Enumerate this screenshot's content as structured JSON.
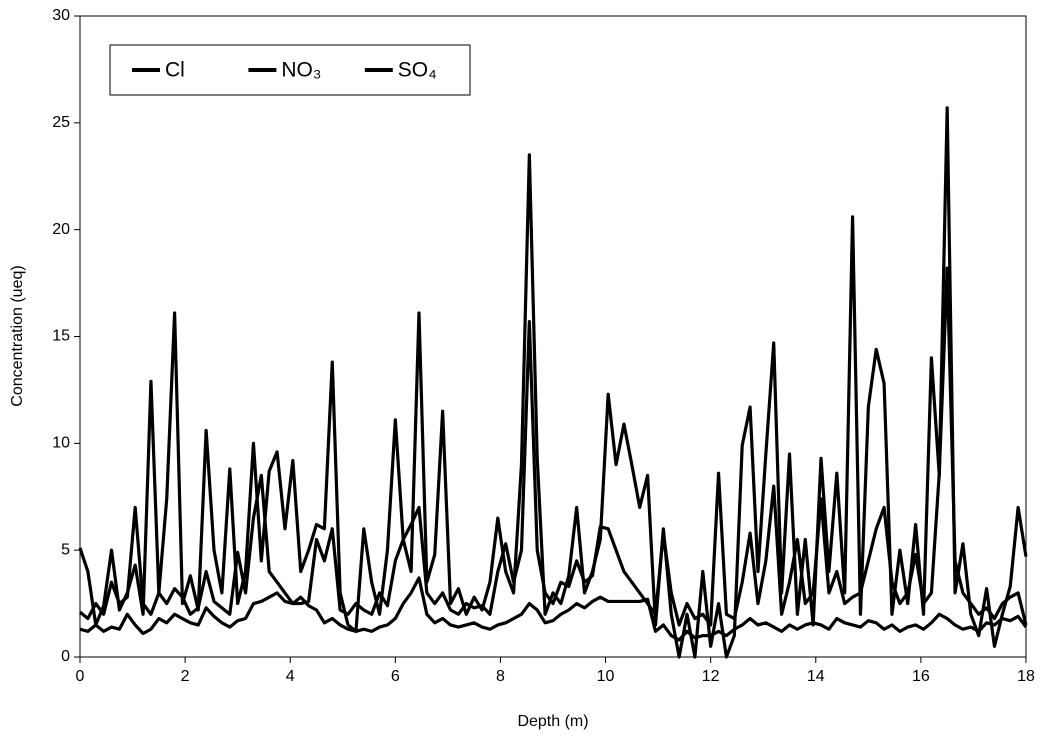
{
  "chart_data": {
    "type": "line",
    "x_label": "Depth (m)",
    "y_label": "Concentration (ueq)",
    "x": [
      0,
      0.15,
      0.3,
      0.45,
      0.6,
      0.75,
      0.9,
      1.05,
      1.2,
      1.35,
      1.5,
      1.65,
      1.8,
      1.95,
      2.1,
      2.25,
      2.4,
      2.55,
      2.7,
      2.85,
      3,
      3.15,
      3.3,
      3.45,
      3.6,
      3.75,
      3.9,
      4.05,
      4.2,
      4.35,
      4.5,
      4.65,
      4.8,
      4.95,
      5.1,
      5.25,
      5.4,
      5.55,
      5.7,
      5.85,
      6,
      6.15,
      6.3,
      6.45,
      6.6,
      6.75,
      6.9,
      7.05,
      7.2,
      7.35,
      7.5,
      7.65,
      7.8,
      7.95,
      8.1,
      8.25,
      8.4,
      8.55,
      8.7,
      8.85,
      9,
      9.15,
      9.3,
      9.45,
      9.6,
      9.75,
      9.9,
      10.05,
      10.2,
      10.35,
      10.5,
      10.65,
      10.8,
      10.95,
      11.1,
      11.25,
      11.4,
      11.55,
      11.7,
      11.85,
      12,
      12.15,
      12.3,
      12.45,
      12.6,
      12.75,
      12.9,
      13.05,
      13.2,
      13.35,
      13.5,
      13.65,
      13.8,
      13.95,
      14.1,
      14.25,
      14.4,
      14.55,
      14.7,
      14.85,
      15,
      15.15,
      15.3,
      15.45,
      15.6,
      15.75,
      15.9,
      16.05,
      16.2,
      16.35,
      16.5,
      16.65,
      16.8,
      16.95,
      17.1,
      17.25,
      17.4,
      17.55,
      17.7,
      17.85,
      18
    ],
    "series": [
      {
        "name": "Cl",
        "color": "#000000",
        "values": [
          5.1,
          4.0,
          1.5,
          2.4,
          5.0,
          2.2,
          3.0,
          4.3,
          2.0,
          12.9,
          3.0,
          7.4,
          16.1,
          2.5,
          3.8,
          2.2,
          10.6,
          5.0,
          3.0,
          8.8,
          2.5,
          4.0,
          10.0,
          4.5,
          8.7,
          9.6,
          6.0,
          9.2,
          4.0,
          5.0,
          6.2,
          6.0,
          13.8,
          3.0,
          1.5,
          1.2,
          6.0,
          3.5,
          2.0,
          5.0,
          11.1,
          5.5,
          4.0,
          16.1,
          3.5,
          4.8,
          11.5,
          2.5,
          3.2,
          2.0,
          2.8,
          2.2,
          3.5,
          6.5,
          4.0,
          3.0,
          9.0,
          23.5,
          9.3,
          2.0,
          3.0,
          2.5,
          3.8,
          7.0,
          3.0,
          4.0,
          5.5,
          12.3,
          9.0,
          10.9,
          9.0,
          7.0,
          8.5,
          1.5,
          6.0,
          2.0,
          0.0,
          2.0,
          0.0,
          4.0,
          0.5,
          2.5,
          0.0,
          1.0,
          9.9,
          11.7,
          4.0,
          9.5,
          14.7,
          3.0,
          9.5,
          2.0,
          5.5,
          1.5,
          9.3,
          4.0,
          8.6,
          3.0,
          20.6,
          2.0,
          11.7,
          14.4,
          12.8,
          2.0,
          5.0,
          2.5,
          6.2,
          2.0,
          14.0,
          8.5,
          25.7,
          3.0,
          5.3,
          2.0,
          1.0,
          3.2,
          0.5,
          2.0,
          3.3,
          7.0,
          4.7
        ]
      },
      {
        "name": "NO₃",
        "color": "#000000",
        "values": [
          1.3,
          1.2,
          1.5,
          1.2,
          1.4,
          1.3,
          2.0,
          1.5,
          1.1,
          1.3,
          1.8,
          1.6,
          2.0,
          1.8,
          1.6,
          1.5,
          2.3,
          1.9,
          1.6,
          1.4,
          1.7,
          1.8,
          2.5,
          2.6,
          2.8,
          3.0,
          2.6,
          2.5,
          2.8,
          2.4,
          2.2,
          1.6,
          1.8,
          1.5,
          1.3,
          1.2,
          1.3,
          1.2,
          1.4,
          1.5,
          1.8,
          2.5,
          3.0,
          3.7,
          2.0,
          1.6,
          1.8,
          1.5,
          1.4,
          1.5,
          1.6,
          1.4,
          1.3,
          1.5,
          1.6,
          1.8,
          2.0,
          2.5,
          2.2,
          1.6,
          1.7,
          2.0,
          2.2,
          2.5,
          2.3,
          2.6,
          2.8,
          2.6,
          2.6,
          2.6,
          2.6,
          2.6,
          2.7,
          1.2,
          1.5,
          1.0,
          0.8,
          1.2,
          0.9,
          1.0,
          1.0,
          1.2,
          1.0,
          1.3,
          1.5,
          1.8,
          1.5,
          1.6,
          1.4,
          1.2,
          1.5,
          1.3,
          1.5,
          1.6,
          1.5,
          1.3,
          1.8,
          1.6,
          1.5,
          1.4,
          1.7,
          1.6,
          1.3,
          1.5,
          1.2,
          1.4,
          1.5,
          1.3,
          1.6,
          2.0,
          1.8,
          1.5,
          1.3,
          1.4,
          1.2,
          1.6,
          1.5,
          1.8,
          1.7,
          1.9,
          1.4
        ]
      },
      {
        "name": "SO₄",
        "color": "#000000",
        "values": [
          2.1,
          1.8,
          2.5,
          2.0,
          3.5,
          2.5,
          2.8,
          7.0,
          2.5,
          2.0,
          3.0,
          2.5,
          3.2,
          2.8,
          2.0,
          2.3,
          4.0,
          2.6,
          2.3,
          2.0,
          4.9,
          3.0,
          6.5,
          8.5,
          4.0,
          3.5,
          3.0,
          2.5,
          2.5,
          2.6,
          5.5,
          4.5,
          6.0,
          2.2,
          2.0,
          2.5,
          2.2,
          2.0,
          3.0,
          2.4,
          4.5,
          5.5,
          6.2,
          7.0,
          3.0,
          2.5,
          3.0,
          2.2,
          2.0,
          2.5,
          2.3,
          2.4,
          2.0,
          4.0,
          5.3,
          3.5,
          5.0,
          15.7,
          5.0,
          3.0,
          2.5,
          3.5,
          3.3,
          4.5,
          3.5,
          3.8,
          6.1,
          6.0,
          5.0,
          4.0,
          3.5,
          3.0,
          2.5,
          2.0,
          5.8,
          3.0,
          1.5,
          2.5,
          1.8,
          2.0,
          1.5,
          8.6,
          2.0,
          1.8,
          3.5,
          5.8,
          2.5,
          4.5,
          8.0,
          2.0,
          3.5,
          5.5,
          2.5,
          3.0,
          7.4,
          3.0,
          4.0,
          2.5,
          2.8,
          3.0,
          4.5,
          6.0,
          7.0,
          3.5,
          2.5,
          3.0,
          4.8,
          2.5,
          3.0,
          8.6,
          18.2,
          4.5,
          3.0,
          2.5,
          2.0,
          2.3,
          1.8,
          2.5,
          2.8,
          3.0,
          1.5
        ]
      }
    ],
    "xlim": [
      0,
      18
    ],
    "xticks": [
      0,
      2,
      4,
      6,
      8,
      10,
      12,
      14,
      16,
      18
    ],
    "ylim": [
      0,
      30
    ],
    "yticks": [
      0,
      5,
      10,
      15,
      20,
      25,
      30
    ],
    "grid": false,
    "legend": "upper left"
  }
}
